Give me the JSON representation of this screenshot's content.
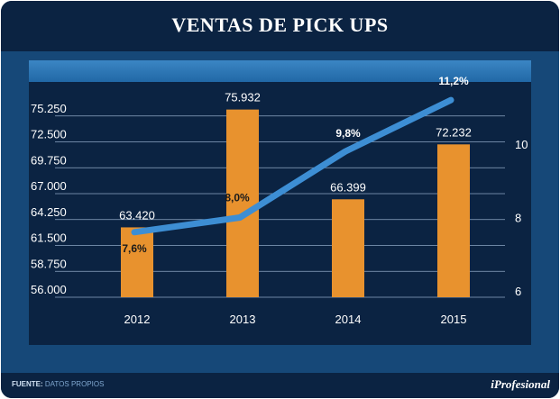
{
  "title": "VENTAS DE  PICK UPS",
  "footer": {
    "source_label": "FUENTE:",
    "source_text": "DATOS PROPIOS",
    "brand": "iProfesional"
  },
  "colors": {
    "bar": "#e8922e",
    "line": "#3d8ed4",
    "background": "#0c2a4d",
    "plot": "#0b2342"
  },
  "chart_data": {
    "type": "bar",
    "categories": [
      "2012",
      "2013",
      "2014",
      "2015"
    ],
    "series": [
      {
        "type": "bar",
        "axis": "left",
        "values": [
          63420,
          75932,
          66399,
          72232
        ],
        "labels": [
          "63.420",
          "75.932",
          "66.399",
          "72.232"
        ]
      },
      {
        "type": "line",
        "axis": "right",
        "values": [
          7.6,
          8.0,
          9.8,
          11.2
        ],
        "labels": [
          "7,6%",
          "8,0%",
          "9,8%",
          "11,2%"
        ]
      }
    ],
    "y_left": {
      "range": [
        56000,
        78000
      ],
      "ticks": [
        56000,
        58750,
        61500,
        64250,
        67000,
        69750,
        72500,
        75250
      ],
      "tick_labels": [
        "56.000",
        "58.750",
        "61.500",
        "64.250",
        "67.000",
        "69.750",
        "72.500",
        "75.250"
      ]
    },
    "y_right": {
      "range": [
        6,
        12
      ],
      "ticks": [
        6,
        8,
        10
      ],
      "tick_labels": [
        "6",
        "8",
        "10"
      ]
    },
    "grid": true
  }
}
